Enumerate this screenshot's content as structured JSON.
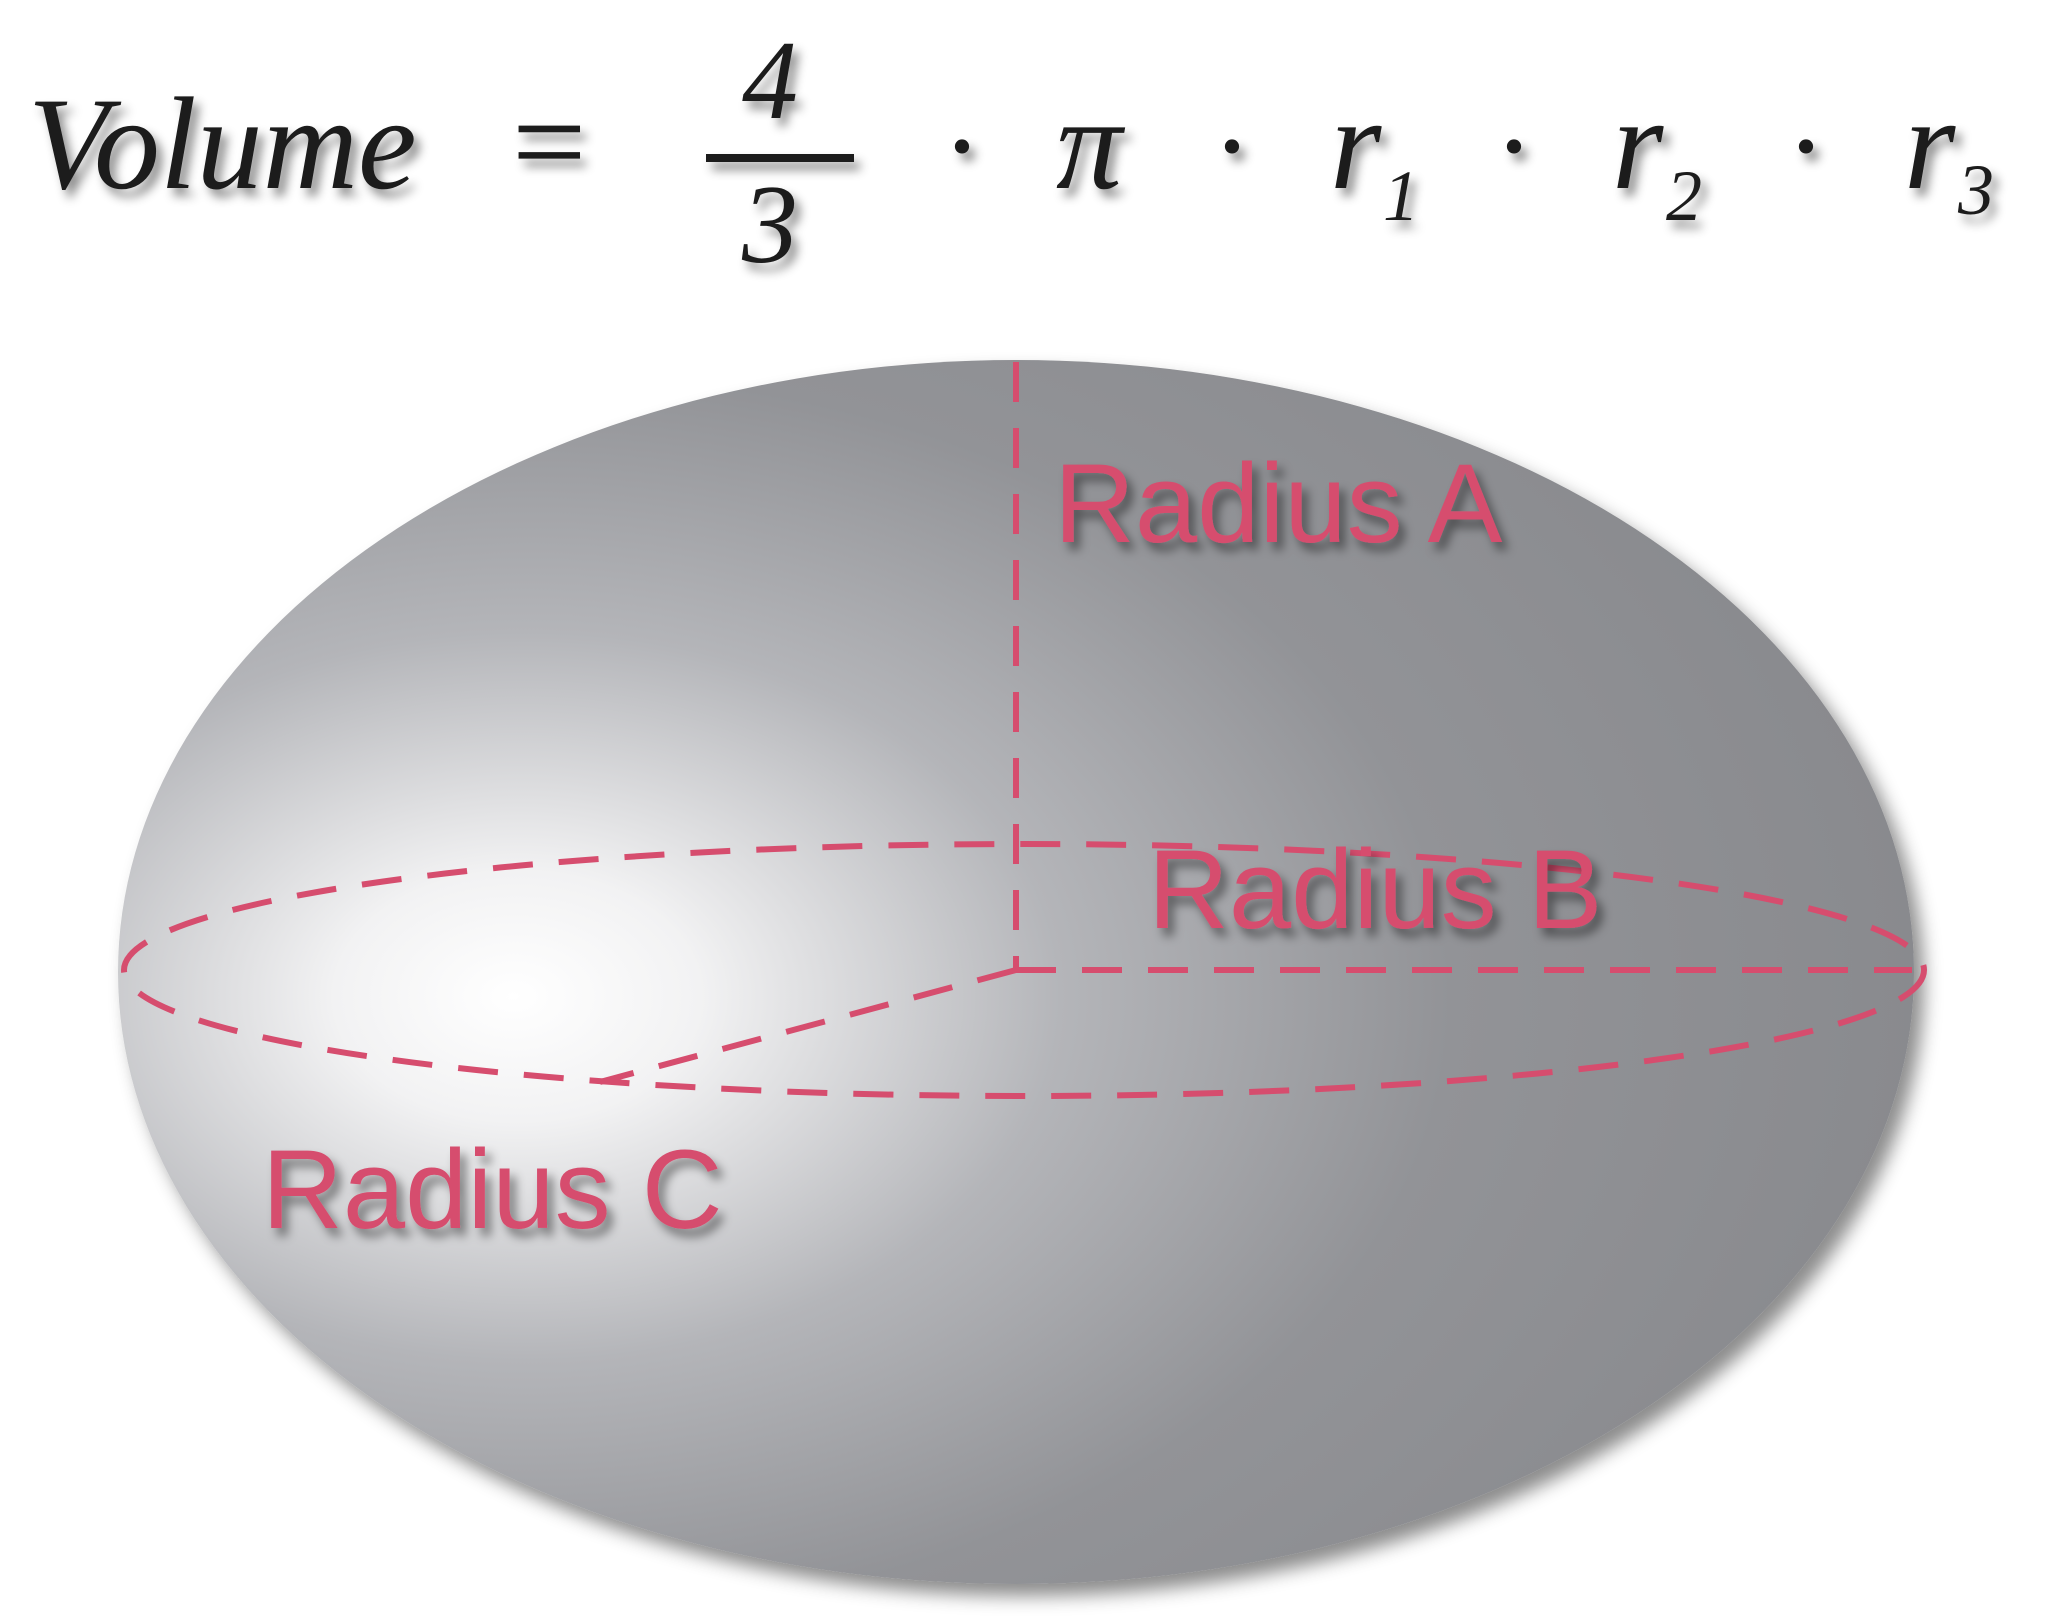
{
  "formula": {
    "lhs": "Volume",
    "equals": "=",
    "numerator": "4",
    "denominator": "3",
    "dot": "·",
    "pi": "π",
    "r": "r",
    "sub1": "1",
    "sub2": "2",
    "sub3": "3"
  },
  "labels": {
    "radius_a": "Radius A",
    "radius_b": "Radius B",
    "radius_c": "Radius C"
  },
  "colors": {
    "accent": "#D64D6E",
    "shape_dark": "#8A8B8F",
    "shape_light": "#FFFFFF",
    "text": "#1A1A1A"
  }
}
